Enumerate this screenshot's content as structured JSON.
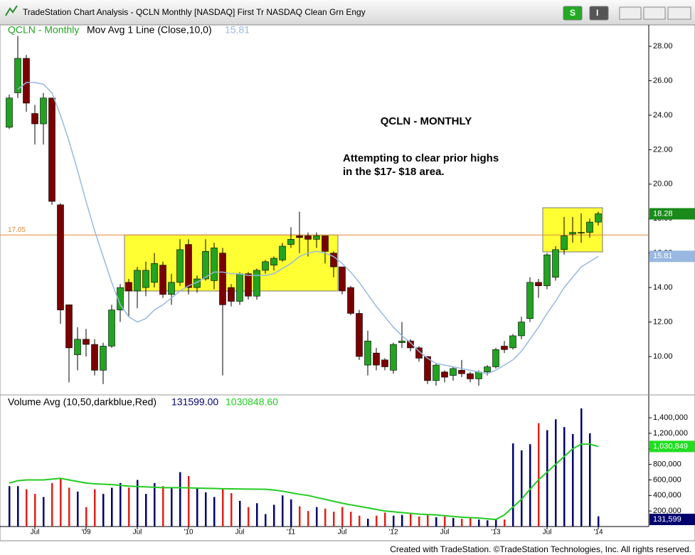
{
  "window": {
    "title": "TradeStation Chart Analysis - QCLN Monthly [NASDAQ] First Tr NASDAQ Clean Grn Engy",
    "buttons": [
      "S",
      "I"
    ]
  },
  "footer": "Created with TradeStation. ©TradeStation Technologies, Inc. All rights reserved.",
  "chart_data": [
    {
      "type": "candlestick",
      "title": "QCLN - Monthly",
      "indicator": "Mov Avg 1 Line (Close,10,0)",
      "annotation_title": "QCLN - MONTHLY",
      "annotation_lines": [
        "Attempting to clear prior highs",
        "in the $17- $18 area."
      ],
      "categories": [
        null,
        null,
        null,
        "Jul",
        null,
        null,
        null,
        null,
        null,
        "'09",
        null,
        null,
        null,
        null,
        null,
        "Jul",
        null,
        null,
        null,
        null,
        null,
        "'10",
        null,
        null,
        null,
        null,
        null,
        "Jul",
        null,
        null,
        null,
        null,
        null,
        "'11",
        null,
        null,
        null,
        null,
        null,
        "Jul",
        null,
        null,
        null,
        null,
        null,
        "'12",
        null,
        null,
        null,
        null,
        null,
        "Jul",
        null,
        null,
        null,
        null,
        null,
        "'13",
        null,
        null,
        null,
        null,
        null,
        "Jul",
        null,
        null,
        null,
        null,
        null,
        "'14"
      ],
      "open": [
        23.3,
        25.3,
        27.3,
        24.1,
        23.5,
        25.0,
        18.8,
        13.0,
        10.1,
        11.0,
        10.7,
        9.2,
        10.6,
        12.7,
        14.3,
        13.8,
        14.0,
        14.3,
        15.3,
        13.6,
        14.3,
        16.5,
        14.0,
        14.5,
        14.4,
        16.0,
        14.0,
        13.2,
        14.8,
        13.5,
        15.0,
        15.3,
        15.6,
        16.5,
        17.0,
        17.0,
        16.8,
        17.0,
        16.0,
        15.2,
        14.0,
        12.5,
        9.5,
        10.2,
        9.8,
        9.2,
        10.8,
        10.9,
        10.5,
        10.0,
        8.6,
        9.1,
        8.9,
        9.2,
        9.0,
        8.7,
        9.1,
        9.4,
        10.6,
        10.5,
        11.2,
        12.2,
        14.3,
        14.1,
        14.6,
        16.2,
        17.1,
        17.2,
        17.2,
        17.8
      ],
      "high": [
        25.2,
        28.6,
        27.5,
        24.6,
        25.3,
        25.0,
        18.9,
        13.0,
        11.7,
        11.6,
        11.0,
        10.8,
        13.0,
        14.2,
        14.5,
        15.2,
        15.5,
        16.0,
        15.5,
        14.8,
        16.8,
        16.8,
        14.7,
        16.8,
        16.6,
        16.3,
        14.2,
        14.9,
        14.9,
        15.1,
        15.6,
        15.8,
        16.6,
        17.5,
        18.4,
        17.2,
        17.2,
        17.0,
        16.1,
        15.2,
        14.1,
        12.7,
        11.5,
        10.5,
        9.9,
        10.8,
        12.0,
        11.0,
        10.6,
        10.0,
        9.6,
        9.2,
        9.4,
        9.8,
        9.1,
        9.2,
        9.5,
        10.5,
        10.9,
        11.3,
        12.3,
        14.6,
        14.5,
        16.0,
        16.4,
        18.1,
        18.1,
        18.3,
        18.0,
        18.4
      ],
      "low": [
        23.2,
        25.0,
        24.2,
        22.3,
        22.3,
        18.8,
        11.9,
        8.5,
        9.2,
        10.0,
        8.9,
        8.4,
        10.5,
        12.0,
        12.3,
        12.8,
        13.5,
        14.0,
        13.4,
        13.0,
        14.1,
        13.6,
        13.7,
        14.4,
        13.9,
        8.9,
        12.9,
        13.0,
        13.3,
        13.3,
        14.8,
        15.0,
        15.5,
        16.3,
        16.0,
        15.8,
        16.3,
        15.4,
        14.6,
        13.6,
        12.4,
        9.8,
        8.9,
        9.2,
        9.2,
        9.0,
        10.5,
        10.3,
        9.7,
        8.4,
        8.3,
        8.5,
        8.6,
        8.8,
        8.5,
        8.3,
        8.9,
        9.3,
        10.2,
        10.4,
        11.0,
        12.0,
        13.4,
        13.9,
        14.4,
        15.9,
        16.6,
        16.6,
        16.9,
        17.6
      ],
      "close": [
        25.0,
        27.3,
        24.7,
        23.5,
        25.0,
        19.0,
        12.7,
        10.5,
        11.0,
        10.7,
        9.2,
        10.6,
        12.7,
        14.0,
        13.8,
        15.0,
        15.0,
        15.4,
        13.6,
        14.3,
        16.2,
        14.0,
        14.5,
        16.1,
        16.3,
        13.0,
        13.2,
        14.8,
        13.5,
        15.0,
        15.5,
        15.7,
        16.4,
        16.8,
        16.9,
        16.8,
        17.0,
        16.1,
        15.2,
        13.8,
        12.5,
        10.0,
        10.9,
        9.5,
        9.4,
        10.7,
        10.9,
        10.5,
        9.9,
        8.6,
        9.5,
        8.8,
        9.3,
        9.0,
        8.7,
        9.1,
        9.4,
        10.4,
        10.4,
        11.2,
        12.0,
        14.3,
        14.1,
        15.9,
        16.2,
        17.0,
        17.2,
        17.2,
        17.8,
        18.28
      ],
      "up_color": "#22a322",
      "down_color": "#7a0000",
      "ma": {
        "color": "#98b8e0",
        "values": [
          null,
          25.5,
          25.9,
          25.9,
          25.8,
          25.3,
          24.0,
          22.5,
          20.8,
          19.0,
          17.3,
          15.8,
          14.3,
          13.0,
          12.3,
          12.0,
          12.2,
          12.7,
          13.0,
          13.4,
          13.8,
          14.1,
          14.3,
          14.6,
          14.9,
          14.9,
          14.8,
          14.8,
          14.7,
          14.7,
          14.7,
          14.8,
          15.1,
          15.4,
          15.8,
          16.0,
          16.1,
          16.0,
          15.8,
          15.4,
          14.9,
          14.3,
          13.6,
          12.9,
          12.3,
          11.7,
          11.2,
          10.8,
          10.3,
          9.9,
          9.6,
          9.5,
          9.4,
          9.3,
          9.2,
          9.1,
          9.0,
          9.2,
          9.5,
          9.8,
          10.3,
          11.0,
          11.7,
          12.5,
          13.2,
          14.0,
          14.6,
          15.2,
          15.5,
          15.81
        ]
      },
      "hline": {
        "value": 17.05,
        "color": "#e08a3a"
      },
      "highlights": [
        {
          "start": 14,
          "end": 39,
          "low": 13.8,
          "high": 17.05
        },
        {
          "start": 63,
          "end": 70,
          "low": 16.07,
          "high": 18.63
        }
      ],
      "highlight_color": "#ffff33",
      "ylim": [
        7.77,
        29.2
      ],
      "yticks": [
        {
          "value": 10,
          "label": "10.00"
        },
        {
          "value": 12,
          "label": "12.00"
        },
        {
          "value": 14,
          "label": "14.00"
        },
        {
          "value": 16,
          "label": "16.00"
        },
        {
          "value": 18,
          "label": "18.00"
        },
        {
          "value": 20,
          "label": "20.00"
        },
        {
          "value": 22,
          "label": "22.00"
        },
        {
          "value": 24,
          "label": "24.00"
        },
        {
          "value": 26,
          "label": "26.00"
        },
        {
          "value": 28,
          "label": "28.00"
        }
      ]
    },
    {
      "type": "bar",
      "title": "Volume Avg (10,50,darkblue,Red)",
      "readouts": [
        "131599.00",
        "1030848.60"
      ],
      "tags": [
        "1,030,849",
        "131,599"
      ],
      "values": [
        520000,
        520000,
        480000,
        420000,
        380000,
        560000,
        620000,
        500000,
        450000,
        250000,
        480000,
        420000,
        500000,
        560000,
        500000,
        600000,
        420000,
        560000,
        520000,
        500000,
        700000,
        650000,
        500000,
        440000,
        380000,
        480000,
        430000,
        330000,
        250000,
        300000,
        160000,
        280000,
        400000,
        350000,
        260000,
        200000,
        250000,
        230000,
        190000,
        250000,
        190000,
        140000,
        100000,
        140000,
        180000,
        140000,
        150000,
        170000,
        130000,
        160000,
        120000,
        130000,
        110000,
        100000,
        120000,
        90000,
        80000,
        100000,
        90000,
        1070000,
        980000,
        1060000,
        1330000,
        1240000,
        1380000,
        1280000,
        1190000,
        1520000,
        1200000,
        131599
      ],
      "up_color": "#00006e",
      "down_color": "#e0201a",
      "avg": {
        "color": "#22cc22",
        "values": [
          560000,
          590000,
          600000,
          600000,
          600000,
          610000,
          620000,
          600000,
          580000,
          560000,
          550000,
          545000,
          540000,
          530000,
          520000,
          515000,
          510000,
          505000,
          500000,
          500000,
          500000,
          498000,
          495000,
          492000,
          490000,
          487000,
          485000,
          483000,
          482000,
          481000,
          480000,
          470000,
          455000,
          435000,
          415000,
          400000,
          375000,
          350000,
          325000,
          300000,
          280000,
          260000,
          240000,
          220000,
          200000,
          190000,
          180000,
          170000,
          160000,
          155000,
          150000,
          140000,
          130000,
          120000,
          115000,
          110000,
          100000,
          90000,
          150000,
          250000,
          350000,
          480000,
          600000,
          700000,
          800000,
          900000,
          1000000,
          1060000,
          1060000,
          1030848.6
        ]
      },
      "ylim": [
        0,
        1685000
      ],
      "yticks": [
        {
          "value": 200000,
          "label": "200,000"
        },
        {
          "value": 400000,
          "label": "400,000"
        },
        {
          "value": 600000,
          "label": "600,000"
        },
        {
          "value": 800000,
          "label": "800,000"
        },
        {
          "value": 1000000,
          "label": "1,000,000"
        },
        {
          "value": 1200000,
          "label": "1,200,000"
        },
        {
          "value": 1400000,
          "label": "1,400,000"
        }
      ]
    }
  ]
}
